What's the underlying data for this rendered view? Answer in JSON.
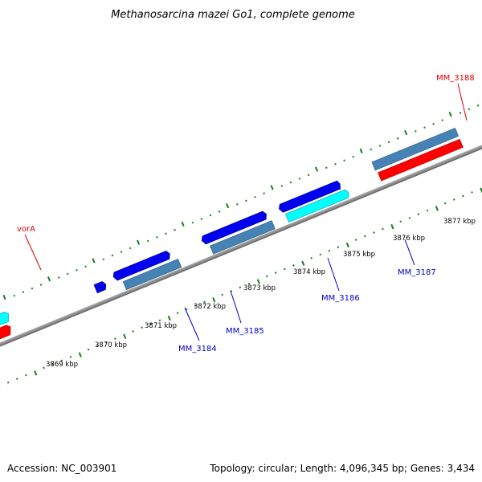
{
  "title": "Methanosarcina mazei Go1, complete genome",
  "footer": {
    "accession": "Accession: NC_003901",
    "summary": "Topology: circular; Length: 4,096,345 bp; Genes: 3,434"
  },
  "colors": {
    "backbone": "#808080",
    "tick": "#1a7a1a",
    "red_gene": "#ff0000",
    "cyan_gene": "#00ffff",
    "blue_gene": "#0000ee",
    "steel_gene": "#4682b4",
    "red_label": "#dd0000",
    "blue_label": "#0000cc"
  },
  "ruler_labels": [
    "3869 kbp",
    "3870 kbp",
    "3871 kbp",
    "3872 kbp",
    "3873 kbp",
    "3874 kbp",
    "3875 kbp",
    "3876 kbp",
    "3877 kbp"
  ],
  "gene_labels": [
    {
      "text": "vorA",
      "color": "red"
    },
    {
      "text": "MM_3184",
      "color": "blue"
    },
    {
      "text": "MM_3185",
      "color": "blue"
    },
    {
      "text": "MM_3186",
      "color": "blue"
    },
    {
      "text": "MM_3187",
      "color": "blue"
    },
    {
      "text": "MM_3188",
      "color": "red"
    }
  ]
}
